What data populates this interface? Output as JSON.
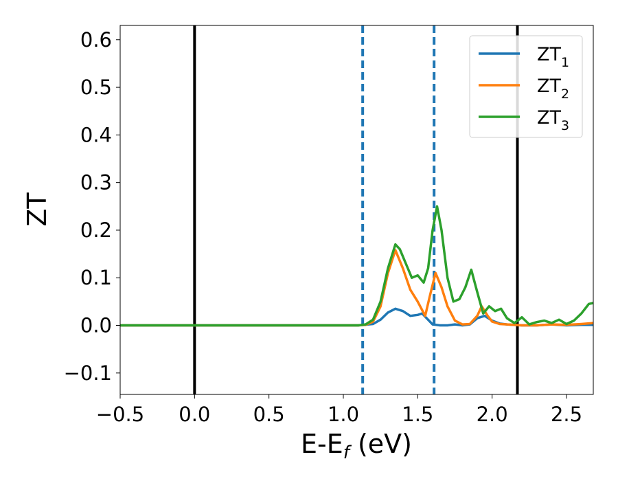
{
  "chart_data": {
    "type": "line",
    "title": "",
    "xlabel": {
      "main": "E-E",
      "sub": "f",
      "unit": " (eV)"
    },
    "ylabel": "ZT",
    "xlim": [
      -0.5,
      2.68
    ],
    "ylim": [
      -0.145,
      0.63
    ],
    "xticks": [
      -0.5,
      0.0,
      0.5,
      1.0,
      1.5,
      2.0,
      2.5
    ],
    "xtick_labels": [
      "−0.5",
      "0.0",
      "0.5",
      "1.0",
      "1.5",
      "2.0",
      "2.5"
    ],
    "yticks": [
      -0.1,
      0.0,
      0.1,
      0.2,
      0.3,
      0.4,
      0.5,
      0.6
    ],
    "ytick_labels": [
      "−0.1",
      "0.0",
      "0.1",
      "0.2",
      "0.3",
      "0.4",
      "0.5",
      "0.6"
    ],
    "grid": false,
    "legend_position": "top-right",
    "vlines": [
      {
        "x": 0.0,
        "style": "solid",
        "color": "#000000"
      },
      {
        "x": 2.17,
        "style": "solid",
        "color": "#000000"
      },
      {
        "x": 1.13,
        "style": "dashed",
        "color": "#1f77b4"
      },
      {
        "x": 1.61,
        "style": "dashed",
        "color": "#1f77b4"
      }
    ],
    "series": [
      {
        "name": "ZT",
        "name_sub": "1",
        "color": "#1f77b4",
        "x": [
          -0.5,
          1.1,
          1.2,
          1.25,
          1.3,
          1.35,
          1.4,
          1.45,
          1.5,
          1.53,
          1.56,
          1.6,
          1.65,
          1.7,
          1.75,
          1.8,
          1.85,
          1.9,
          1.95,
          2.0,
          2.05,
          2.1,
          2.2,
          2.3,
          2.4,
          2.5,
          2.6,
          2.68
        ],
        "y": [
          0.0,
          0.0,
          0.003,
          0.012,
          0.027,
          0.035,
          0.03,
          0.02,
          0.022,
          0.025,
          0.015,
          0.002,
          0.0,
          0.0,
          0.002,
          0.0,
          0.002,
          0.015,
          0.02,
          0.01,
          0.004,
          0.002,
          0.0,
          0.0,
          0.002,
          0.0,
          0.001,
          0.001
        ]
      },
      {
        "name": "ZT",
        "name_sub": "2",
        "color": "#ff7f0e",
        "x": [
          -0.5,
          1.1,
          1.15,
          1.2,
          1.25,
          1.3,
          1.35,
          1.4,
          1.45,
          1.5,
          1.55,
          1.58,
          1.62,
          1.66,
          1.7,
          1.75,
          1.8,
          1.85,
          1.9,
          1.93,
          1.97,
          2.0,
          2.05,
          2.1,
          2.2,
          2.3,
          2.4,
          2.5,
          2.6,
          2.68
        ],
        "y": [
          0.0,
          0.0,
          0.001,
          0.008,
          0.04,
          0.11,
          0.158,
          0.12,
          0.075,
          0.05,
          0.02,
          0.06,
          0.11,
          0.08,
          0.04,
          0.01,
          0.002,
          0.003,
          0.02,
          0.04,
          0.02,
          0.008,
          0.003,
          0.002,
          0.0,
          0.0,
          0.002,
          0.001,
          0.003,
          0.005
        ]
      },
      {
        "name": "ZT",
        "name_sub": "3",
        "color": "#2ca02c",
        "x": [
          -0.5,
          1.1,
          1.15,
          1.2,
          1.25,
          1.3,
          1.35,
          1.38,
          1.42,
          1.46,
          1.5,
          1.54,
          1.57,
          1.6,
          1.63,
          1.66,
          1.7,
          1.74,
          1.78,
          1.82,
          1.86,
          1.9,
          1.94,
          1.98,
          2.02,
          2.06,
          2.1,
          2.15,
          2.2,
          2.25,
          2.3,
          2.35,
          2.4,
          2.45,
          2.5,
          2.55,
          2.6,
          2.65,
          2.68
        ],
        "y": [
          0.0,
          0.0,
          0.002,
          0.012,
          0.05,
          0.12,
          0.17,
          0.16,
          0.13,
          0.1,
          0.105,
          0.09,
          0.12,
          0.2,
          0.25,
          0.2,
          0.1,
          0.05,
          0.055,
          0.08,
          0.117,
          0.07,
          0.025,
          0.04,
          0.03,
          0.035,
          0.015,
          0.005,
          0.017,
          0.002,
          0.007,
          0.01,
          0.005,
          0.012,
          0.003,
          0.01,
          0.025,
          0.045,
          0.047
        ]
      }
    ]
  }
}
